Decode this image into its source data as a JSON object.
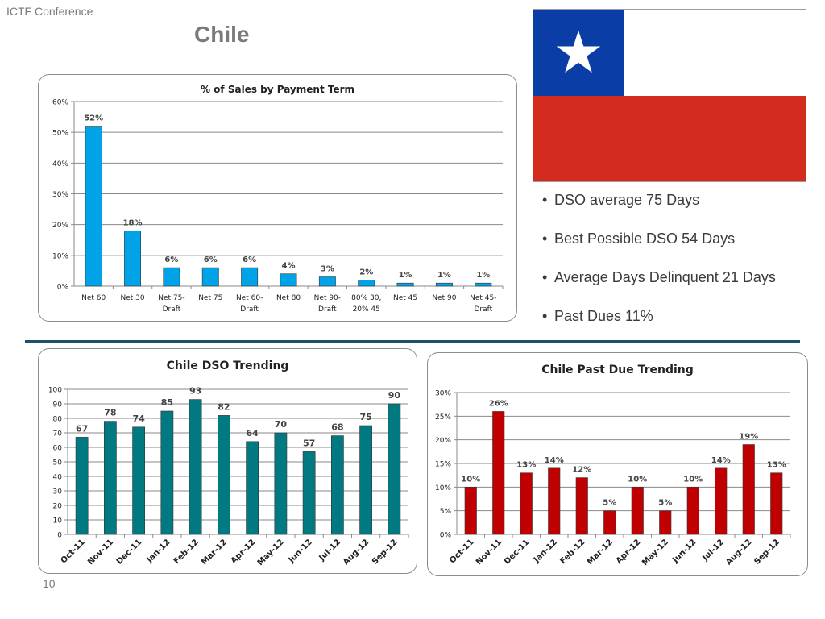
{
  "header": {
    "conference": "ICTF Conference",
    "title": "Chile"
  },
  "bullets": [
    "DSO average 75 Days",
    "Best Possible DSO 54 Days",
    "Average Days Delinquent  21 Days",
    "Past Dues 11%"
  ],
  "footer": {
    "page_number": "10"
  },
  "colors": {
    "terms_bar": "#00a3e8",
    "dso_bar": "#007a80",
    "pastdue_bar": "#c00000",
    "flag_blue": "#0a3ea6",
    "flag_red": "#d52b1e"
  },
  "chart_data": [
    {
      "id": "terms",
      "type": "bar",
      "title": "% of Sales by Payment Term",
      "categories": [
        [
          "Net 60"
        ],
        [
          "Net 30"
        ],
        [
          "Net 75-",
          "Draft"
        ],
        [
          "Net 75"
        ],
        [
          "Net 60-",
          "Draft"
        ],
        [
          "Net 80"
        ],
        [
          "Net 90-",
          "Draft"
        ],
        [
          "80% 30,",
          "20% 45"
        ],
        [
          "Net 45"
        ],
        [
          "Net 90"
        ],
        [
          "Net 45-",
          "Draft"
        ]
      ],
      "values": [
        52,
        18,
        6,
        6,
        6,
        4,
        3,
        2,
        1,
        1,
        1
      ],
      "ylim": [
        0,
        60
      ],
      "yticks": [
        0,
        10,
        20,
        30,
        40,
        50,
        60
      ],
      "unit": "%",
      "grid": true,
      "legend": "none"
    },
    {
      "id": "dso",
      "type": "bar",
      "title": "Chile DSO Trending",
      "categories": [
        "Oct-11",
        "Nov-11",
        "Dec-11",
        "Jan-12",
        "Feb-12",
        "Mar-12",
        "Apr-12",
        "May-12",
        "Jun-12",
        "Jul-12",
        "Aug-12",
        "Sep-12"
      ],
      "values": [
        67,
        78,
        74,
        85,
        93,
        82,
        64,
        70,
        57,
        68,
        75,
        90
      ],
      "ylim": [
        0,
        100
      ],
      "yticks": [
        0,
        10,
        20,
        30,
        40,
        50,
        60,
        70,
        80,
        90,
        100
      ],
      "unit": "",
      "grid": true,
      "legend": "none"
    },
    {
      "id": "pastdue",
      "type": "bar",
      "title": "Chile Past Due  Trending",
      "categories": [
        "Oct-11",
        "Nov-11",
        "Dec-11",
        "Jan-12",
        "Feb-12",
        "Mar-12",
        "Apr-12",
        "May-12",
        "Jun-12",
        "Jul-12",
        "Aug-12",
        "Sep-12"
      ],
      "values": [
        10,
        26,
        13,
        14,
        12,
        5,
        10,
        5,
        10,
        14,
        19,
        13
      ],
      "ylim": [
        0,
        30
      ],
      "yticks": [
        0,
        5,
        10,
        15,
        20,
        25,
        30
      ],
      "unit": "%",
      "grid": true,
      "legend": "none"
    }
  ]
}
